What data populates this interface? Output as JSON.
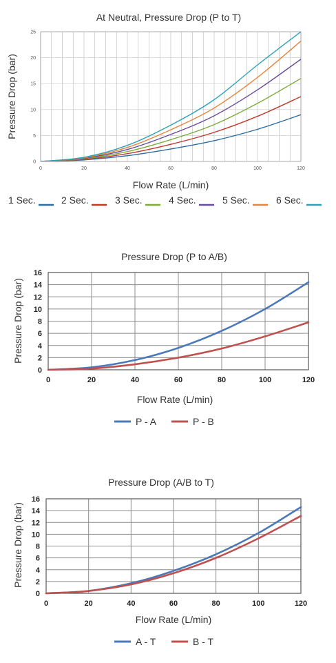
{
  "chart_data": [
    {
      "type": "line",
      "title": "At Neutral, Pressure Drop (P to T)",
      "xlabel": "Flow Rate (L/min)",
      "ylabel": "Pressure Drop (bar)",
      "xlim": [
        0,
        120
      ],
      "ylim": [
        0,
        25
      ],
      "x_ticks": [
        0,
        20,
        40,
        60,
        80,
        100,
        120
      ],
      "y_ticks": [
        0,
        5,
        10,
        15,
        20,
        25
      ],
      "grid": "dense vertical, horizontal at major ticks",
      "legend_position": "bottom",
      "x": [
        0,
        20,
        40,
        60,
        80,
        100,
        120
      ],
      "series": [
        {
          "name": "1 Sec.",
          "color": "#2e6da4",
          "values": [
            0,
            0.3,
            1.1,
            2.4,
            4.0,
            6.2,
            9.0
          ]
        },
        {
          "name": "2 Sec.",
          "color": "#c0392b",
          "values": [
            0,
            0.4,
            1.5,
            3.3,
            5.6,
            8.7,
            12.5
          ]
        },
        {
          "name": "3 Sec.",
          "color": "#7cac3a",
          "values": [
            0,
            0.5,
            1.9,
            4.2,
            7.1,
            11.2,
            16.0
          ]
        },
        {
          "name": "4 Sec.",
          "color": "#6a4c9c",
          "values": [
            0,
            0.6,
            2.3,
            5.2,
            8.8,
            13.8,
            19.7
          ]
        },
        {
          "name": "5 Sec.",
          "color": "#e8833a",
          "values": [
            0,
            0.7,
            2.7,
            6.1,
            10.3,
            16.2,
            23.2
          ]
        },
        {
          "name": "6 Sec.",
          "color": "#2aa3b5",
          "values": [
            0,
            0.8,
            3.1,
            7.0,
            11.9,
            18.6,
            25.0
          ]
        }
      ],
      "legend_labels": [
        "1 Sec.",
        "2 Sec.",
        "3 Sec.",
        "4 Sec.",
        "5 Sec.",
        "6 Sec."
      ]
    },
    {
      "type": "line",
      "title": "Pressure Drop (P to A/B)",
      "xlabel": "Flow Rate (L/min)",
      "ylabel": "Pressure Drop (bar)",
      "xlim": [
        0,
        120
      ],
      "ylim": [
        0,
        16
      ],
      "x_ticks": [
        0,
        20,
        40,
        60,
        80,
        100,
        120
      ],
      "y_ticks": [
        0,
        2,
        4,
        6,
        8,
        10,
        12,
        14,
        16
      ],
      "grid": "major",
      "legend_position": "bottom",
      "x": [
        0,
        20,
        40,
        60,
        80,
        100,
        120
      ],
      "series": [
        {
          "name": "P - A",
          "color": "#4a78b8",
          "values": [
            0,
            0.4,
            1.6,
            3.6,
            6.4,
            10.0,
            14.4
          ]
        },
        {
          "name": "P - B",
          "color": "#c0504d",
          "values": [
            0,
            0.2,
            0.9,
            2.0,
            3.5,
            5.5,
            7.8
          ]
        }
      ],
      "legend_labels": [
        "P - A",
        "P - B"
      ]
    },
    {
      "type": "line",
      "title": "Pressure Drop (A/B to T)",
      "xlabel": "Flow Rate (L/min)",
      "ylabel": "Pressure Drop (bar)",
      "xlim": [
        0,
        120
      ],
      "ylim": [
        0,
        16
      ],
      "x_ticks": [
        0,
        20,
        40,
        60,
        80,
        100,
        120
      ],
      "y_ticks": [
        0,
        2,
        4,
        6,
        8,
        10,
        12,
        14,
        16
      ],
      "grid": "major",
      "legend_position": "bottom",
      "x": [
        0,
        20,
        40,
        60,
        80,
        100,
        120
      ],
      "series": [
        {
          "name": "A - T",
          "color": "#4a78b8",
          "values": [
            0,
            0.4,
            1.7,
            3.8,
            6.6,
            10.2,
            14.6
          ]
        },
        {
          "name": "B - T",
          "color": "#c0504d",
          "values": [
            0,
            0.4,
            1.5,
            3.4,
            6.0,
            9.3,
            13.1
          ]
        }
      ],
      "legend_labels": [
        "A - T",
        "B - T"
      ]
    }
  ]
}
